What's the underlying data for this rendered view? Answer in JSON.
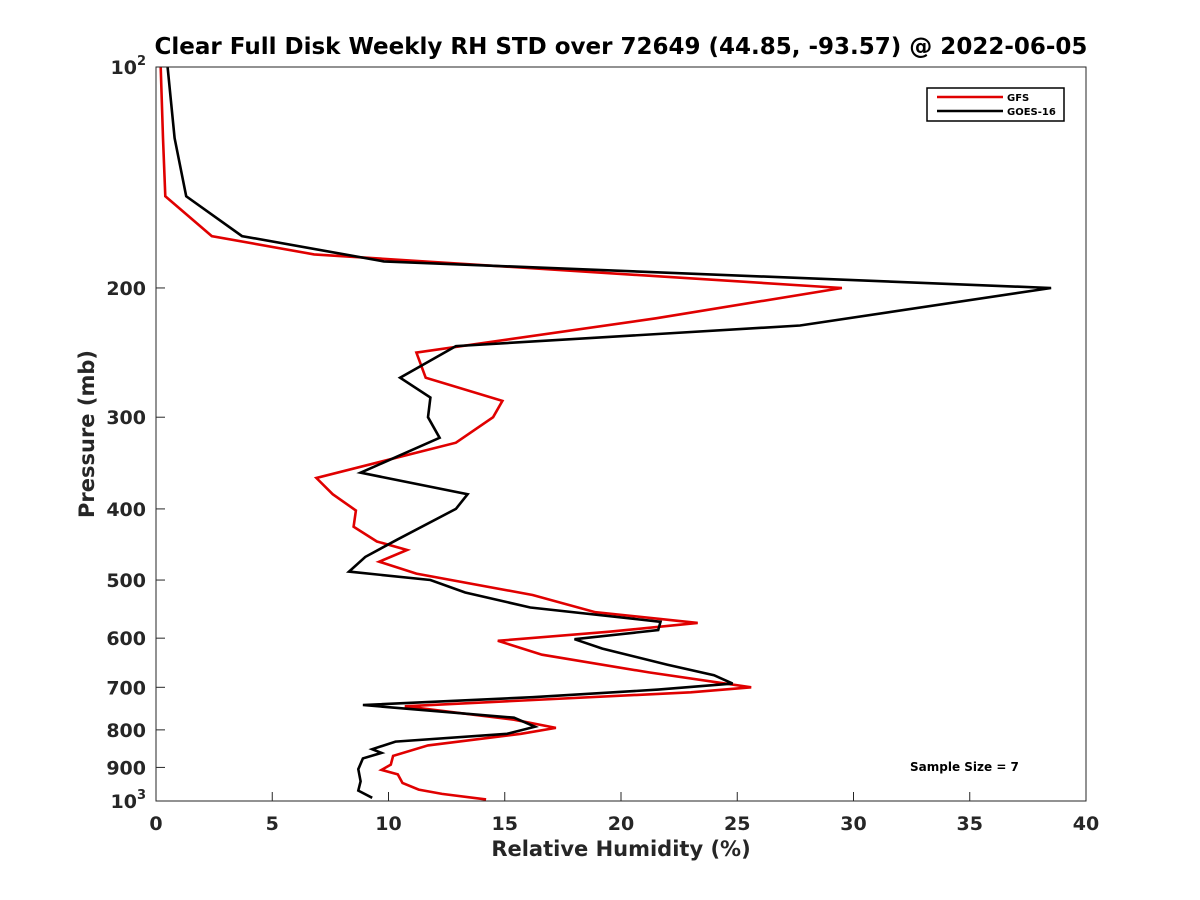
{
  "chart_data": {
    "type": "line",
    "title": "Clear Full Disk Weekly RH STD over 72649 (44.85, -93.57) @ 2022-06-05",
    "xlabel": "Relative Humidity (%)",
    "ylabel": "Pressure (mb)",
    "xlim": [
      0,
      40
    ],
    "ylim": [
      100,
      1000
    ],
    "y_scale": "log",
    "y_reversed": true,
    "grid": false,
    "legend_position": "top-right",
    "x_ticks": [
      "0",
      "5",
      "10",
      "15",
      "20",
      "25",
      "30",
      "35",
      "40"
    ],
    "y_ticks": [
      {
        "value": 100,
        "label": "10",
        "sup": "2"
      },
      {
        "value": 200,
        "label": "200",
        "sup": ""
      },
      {
        "value": 300,
        "label": "300",
        "sup": ""
      },
      {
        "value": 400,
        "label": "400",
        "sup": ""
      },
      {
        "value": 500,
        "label": "500",
        "sup": ""
      },
      {
        "value": 600,
        "label": "600",
        "sup": ""
      },
      {
        "value": 700,
        "label": "700",
        "sup": ""
      },
      {
        "value": 800,
        "label": "800",
        "sup": ""
      },
      {
        "value": 900,
        "label": "900",
        "sup": ""
      },
      {
        "value": 1000,
        "label": "10",
        "sup": "3"
      }
    ],
    "series": [
      {
        "name": "GFS",
        "color": "#e00000",
        "points": [
          [
            0.2,
            100
          ],
          [
            0.3,
            125
          ],
          [
            0.4,
            150
          ],
          [
            2.4,
            170
          ],
          [
            6.8,
            180
          ],
          [
            29.5,
            200
          ],
          [
            21.5,
            220
          ],
          [
            11.2,
            245
          ],
          [
            11.6,
            265
          ],
          [
            14.9,
            285
          ],
          [
            14.5,
            300
          ],
          [
            12.9,
            325
          ],
          [
            6.9,
            363
          ],
          [
            7.6,
            382
          ],
          [
            8.6,
            402
          ],
          [
            8.5,
            423
          ],
          [
            9.5,
            443
          ],
          [
            10.8,
            455
          ],
          [
            9.6,
            472
          ],
          [
            11.2,
            490
          ],
          [
            16.2,
            524
          ],
          [
            18.9,
            553
          ],
          [
            23.3,
            572
          ],
          [
            19.5,
            588
          ],
          [
            14.7,
            605
          ],
          [
            16.6,
            632
          ],
          [
            21.2,
            668
          ],
          [
            25.6,
            700
          ],
          [
            23.0,
            711
          ],
          [
            10.7,
            743
          ],
          [
            15.4,
            775
          ],
          [
            17.2,
            795
          ],
          [
            15.7,
            810
          ],
          [
            11.7,
            840
          ],
          [
            10.2,
            868
          ],
          [
            10.1,
            892
          ],
          [
            9.7,
            907
          ],
          [
            10.4,
            920
          ],
          [
            10.6,
            945
          ],
          [
            11.3,
            965
          ],
          [
            12.3,
            978
          ],
          [
            14.2,
            995
          ]
        ]
      },
      {
        "name": "GOES-16",
        "color": "#000000",
        "points": [
          [
            0.5,
            100
          ],
          [
            0.8,
            125
          ],
          [
            1.3,
            150
          ],
          [
            3.7,
            170
          ],
          [
            9.8,
            184
          ],
          [
            38.5,
            200
          ],
          [
            27.7,
            225
          ],
          [
            12.9,
            240
          ],
          [
            10.5,
            265
          ],
          [
            11.8,
            282
          ],
          [
            11.7,
            300
          ],
          [
            12.2,
            320
          ],
          [
            8.8,
            357
          ],
          [
            13.4,
            382
          ],
          [
            12.9,
            400
          ],
          [
            10.4,
            440
          ],
          [
            9.0,
            465
          ],
          [
            8.3,
            487
          ],
          [
            11.8,
            500
          ],
          [
            13.3,
            520
          ],
          [
            16.1,
            545
          ],
          [
            21.7,
            570
          ],
          [
            21.6,
            585
          ],
          [
            18.0,
            602
          ],
          [
            19.2,
            620
          ],
          [
            22.0,
            652
          ],
          [
            24.0,
            674
          ],
          [
            24.8,
            692
          ],
          [
            21.6,
            705
          ],
          [
            16.2,
            722
          ],
          [
            8.9,
            740
          ],
          [
            15.4,
            770
          ],
          [
            16.3,
            792
          ],
          [
            15.1,
            810
          ],
          [
            10.3,
            830
          ],
          [
            9.3,
            850
          ],
          [
            9.7,
            860
          ],
          [
            8.9,
            875
          ],
          [
            8.7,
            905
          ],
          [
            8.8,
            940
          ],
          [
            8.7,
            968
          ],
          [
            9.3,
            990
          ]
        ]
      }
    ],
    "annotations": [
      {
        "text": "Sample Size = 7",
        "x": 35,
        "y": 900
      }
    ]
  }
}
